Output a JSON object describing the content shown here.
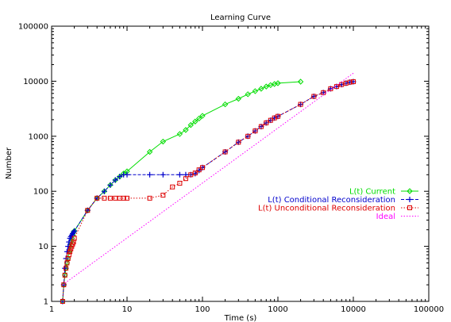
{
  "chart_data": {
    "type": "line",
    "title": "Learning Curve",
    "xlabel": "Time (s)",
    "ylabel": "Number",
    "x_scale": "log",
    "y_scale": "log",
    "xlim": [
      1,
      100000
    ],
    "ylim": [
      1,
      100000
    ],
    "x_ticks": [
      1,
      10,
      100,
      1000,
      10000,
      100000
    ],
    "x_tick_labels": [
      "1",
      "10",
      "100",
      "1000",
      "10000",
      "100000"
    ],
    "y_ticks": [
      1,
      10,
      100,
      1000,
      10000,
      100000
    ],
    "y_tick_labels": [
      "1",
      "10",
      "100",
      "1000",
      "10000",
      "100000"
    ],
    "grid": false,
    "legend_position": "right",
    "series": [
      {
        "name": "L(t) Current",
        "color": "#00dd00",
        "marker": "diamond",
        "line_style": "solid",
        "points": [
          [
            1.4,
            1
          ],
          [
            1.45,
            2
          ],
          [
            1.5,
            3
          ],
          [
            1.55,
            4
          ],
          [
            1.6,
            5
          ],
          [
            1.65,
            6
          ],
          [
            1.7,
            8
          ],
          [
            1.75,
            10
          ],
          [
            1.8,
            12
          ],
          [
            1.85,
            14
          ],
          [
            1.9,
            16
          ],
          [
            1.95,
            18
          ],
          [
            2,
            19
          ],
          [
            3,
            45
          ],
          [
            4,
            75
          ],
          [
            5,
            100
          ],
          [
            6,
            130
          ],
          [
            7,
            160
          ],
          [
            8,
            185
          ],
          [
            9,
            210
          ],
          [
            10,
            230
          ],
          [
            20,
            520
          ],
          [
            30,
            800
          ],
          [
            50,
            1100
          ],
          [
            60,
            1300
          ],
          [
            70,
            1600
          ],
          [
            80,
            1850
          ],
          [
            90,
            2100
          ],
          [
            100,
            2350
          ],
          [
            200,
            3800
          ],
          [
            300,
            4800
          ],
          [
            400,
            5800
          ],
          [
            500,
            6600
          ],
          [
            600,
            7300
          ],
          [
            700,
            8000
          ],
          [
            800,
            8500
          ],
          [
            900,
            8900
          ],
          [
            1000,
            9200
          ],
          [
            2000,
            9800
          ]
        ]
      },
      {
        "name": "L(t) Conditional Reconsideration",
        "color": "#0000cc",
        "marker": "plus",
        "line_style": "dashed",
        "points": [
          [
            1.4,
            1
          ],
          [
            1.45,
            2
          ],
          [
            1.5,
            4
          ],
          [
            1.55,
            6
          ],
          [
            1.6,
            8
          ],
          [
            1.65,
            10
          ],
          [
            1.7,
            12
          ],
          [
            1.75,
            14
          ],
          [
            1.8,
            15
          ],
          [
            1.85,
            16
          ],
          [
            1.9,
            17
          ],
          [
            1.95,
            18
          ],
          [
            2,
            19
          ],
          [
            3,
            45
          ],
          [
            4,
            75
          ],
          [
            5,
            100
          ],
          [
            6,
            130
          ],
          [
            7,
            160
          ],
          [
            8,
            185
          ],
          [
            9,
            200
          ],
          [
            10,
            200
          ],
          [
            20,
            200
          ],
          [
            30,
            200
          ],
          [
            50,
            200
          ],
          [
            60,
            200
          ],
          [
            70,
            200
          ],
          [
            80,
            210
          ],
          [
            90,
            240
          ],
          [
            100,
            270
          ],
          [
            200,
            520
          ],
          [
            300,
            780
          ],
          [
            400,
            1000
          ],
          [
            500,
            1250
          ],
          [
            600,
            1500
          ],
          [
            700,
            1750
          ],
          [
            800,
            1950
          ],
          [
            900,
            2150
          ],
          [
            1000,
            2300
          ],
          [
            2000,
            3800
          ],
          [
            3000,
            5300
          ],
          [
            4000,
            6200
          ],
          [
            5000,
            7300
          ],
          [
            6000,
            8000
          ],
          [
            7000,
            8700
          ],
          [
            8000,
            9200
          ],
          [
            9000,
            9600
          ],
          [
            10000,
            9800
          ]
        ]
      },
      {
        "name": "L(t) Unconditional Reconsideration",
        "color": "#dd0000",
        "marker": "square",
        "line_style": "dotted",
        "points": [
          [
            1.4,
            1
          ],
          [
            1.45,
            2
          ],
          [
            1.5,
            3
          ],
          [
            1.55,
            4
          ],
          [
            1.6,
            5
          ],
          [
            1.65,
            6
          ],
          [
            1.7,
            7
          ],
          [
            1.75,
            8
          ],
          [
            1.8,
            9
          ],
          [
            1.85,
            10
          ],
          [
            1.9,
            11
          ],
          [
            1.95,
            12
          ],
          [
            2,
            14
          ],
          [
            3,
            45
          ],
          [
            4,
            75
          ],
          [
            5,
            75
          ],
          [
            6,
            75
          ],
          [
            7,
            75
          ],
          [
            8,
            75
          ],
          [
            9,
            75
          ],
          [
            10,
            75
          ],
          [
            20,
            75
          ],
          [
            30,
            85
          ],
          [
            40,
            120
          ],
          [
            50,
            140
          ],
          [
            60,
            170
          ],
          [
            70,
            200
          ],
          [
            80,
            215
          ],
          [
            90,
            245
          ],
          [
            100,
            270
          ],
          [
            200,
            520
          ],
          [
            300,
            780
          ],
          [
            400,
            1000
          ],
          [
            500,
            1250
          ],
          [
            600,
            1500
          ],
          [
            700,
            1750
          ],
          [
            800,
            1950
          ],
          [
            900,
            2150
          ],
          [
            1000,
            2300
          ],
          [
            2000,
            3800
          ],
          [
            3000,
            5300
          ],
          [
            4000,
            6200
          ],
          [
            5000,
            7300
          ],
          [
            6000,
            8000
          ],
          [
            7000,
            8700
          ],
          [
            8000,
            9200
          ],
          [
            9000,
            9600
          ],
          [
            10000,
            9800
          ]
        ]
      },
      {
        "name": "Ideal",
        "color": "#ff00ff",
        "marker": "none",
        "line_style": "dotted",
        "points": [
          [
            1.4,
            2
          ],
          [
            10000,
            14000
          ]
        ]
      }
    ]
  }
}
